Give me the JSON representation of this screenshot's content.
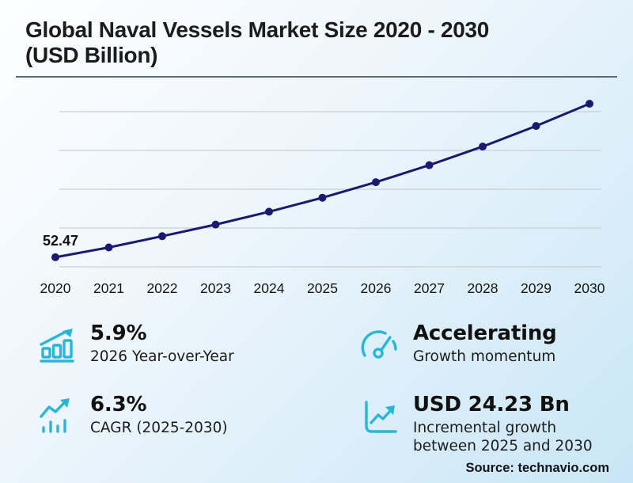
{
  "header": {
    "title_line1": "Global Naval Vessels Market Size 2020 - 2030",
    "title_line2": "(USD Billion)"
  },
  "chart_data": {
    "type": "line",
    "title": "Global Naval Vessels Market Size 2020 - 2030 (USD Billion)",
    "categories": [
      "2020",
      "2021",
      "2022",
      "2023",
      "2024",
      "2025",
      "2026",
      "2027",
      "2028",
      "2029",
      "2030"
    ],
    "series": [
      {
        "name": "Market size (USD Billion)",
        "values": [
          52.47,
          55.0,
          57.9,
          60.9,
          64.2,
          67.81,
          71.81,
          76.2,
          81.0,
          86.3,
          92.04
        ]
      }
    ],
    "first_point_label": "52.47",
    "xlabel": "",
    "ylabel": "",
    "ylim": [
      48,
      96
    ],
    "gridline_values": [
      50,
      60,
      70,
      80,
      90
    ],
    "grid": "horizontal-only, unlabeled y axis",
    "legend": "none",
    "line_color": "#1a1a70",
    "marker": "circle"
  },
  "stats": [
    {
      "icon": "bar-chart-growth-icon",
      "value": "5.9%",
      "label": "2026 Year-over-Year"
    },
    {
      "icon": "speedometer-icon",
      "value": "Accelerating",
      "label": "Growth momentum"
    },
    {
      "icon": "trend-bars-icon",
      "value": "6.3%",
      "label": "CAGR (2025-2030)"
    },
    {
      "icon": "chart-increase-icon",
      "value": "USD 24.23 Bn",
      "label": "Incremental growth between 2025 and 2030"
    }
  ],
  "footer": {
    "source": "Source: technavio.com"
  },
  "colors": {
    "accent_cyan": "#29b6d8",
    "line_navy": "#1a1a70",
    "gridline_gray": "#c3c6c9",
    "background_top": "#fdfeff",
    "background_bottom": "#c9e6f6",
    "text_dark": "#1a1a1a"
  }
}
